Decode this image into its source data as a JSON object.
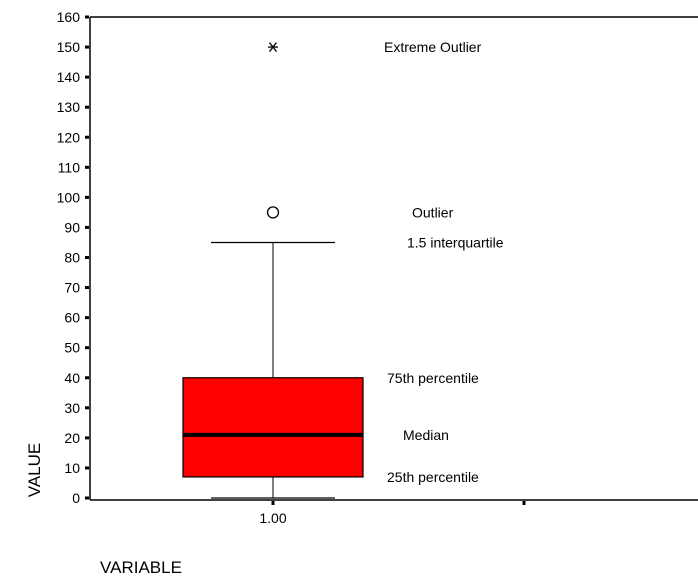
{
  "chart_data": {
    "type": "box",
    "ylabel": "VALUE",
    "xlabel": "VARIABLE",
    "ylim": [
      0,
      160
    ],
    "yticks": [
      0,
      10,
      20,
      30,
      40,
      50,
      60,
      70,
      80,
      90,
      100,
      110,
      120,
      130,
      140,
      150,
      160
    ],
    "categories": [
      "1.00"
    ],
    "box": {
      "category": "1.00",
      "whisker_low": 0,
      "q1": 7,
      "median": 21,
      "q3": 40,
      "whisker_high": 85,
      "outliers": [
        95
      ],
      "extremes": [
        150
      ],
      "fill": "#ff0000"
    },
    "annotations": [
      {
        "text": "Extreme Outlier",
        "y": 150
      },
      {
        "text": "Outlier",
        "y": 95
      },
      {
        "text": "1.5 interquartile",
        "y": 85
      },
      {
        "text": "75th percentile",
        "y": 40
      },
      {
        "text": "Median",
        "y": 21
      },
      {
        "text": "25th percentile",
        "y": 7
      }
    ],
    "grid": false
  }
}
